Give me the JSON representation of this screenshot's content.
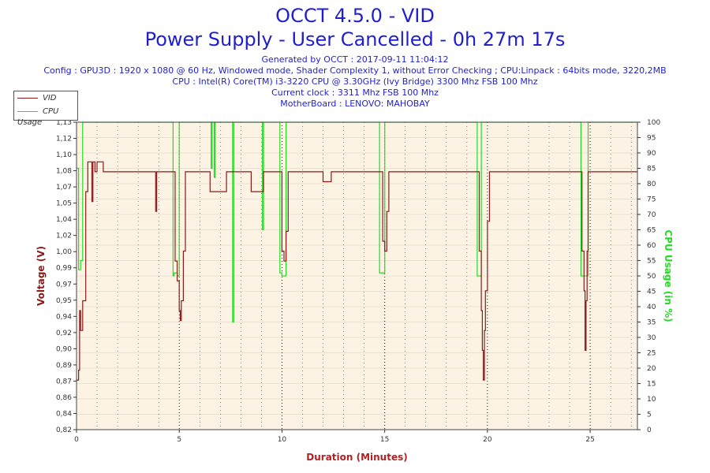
{
  "header": {
    "title": "OCCT 4.5.0 - VID",
    "subtitle": "Power Supply - User Cancelled - 0h 27m 17s",
    "lines": [
      "Generated by OCCT : 2017-09-11 11:04:12",
      "Config : GPU3D : 1920 x 1080 @ 60 Hz, Windowed mode, Shader Complexity 1, without Error Checking ; CPU:Linpack : 64bits mode, 3220,2MB",
      "CPU : Intel(R) Core(TM) i3-3220 CPU @ 3.30GHz (Ivy Bridge) 3300 Mhz FSB 100 Mhz",
      "Current clock : 3311 Mhz FSB 100 Mhz",
      "MotherBoard : LENOVO: MAHOBAY"
    ]
  },
  "legend": [
    {
      "label": "VID",
      "color": "#8b1a1a"
    },
    {
      "label": "CPU Usage",
      "color": "#22dd22"
    }
  ],
  "colors": {
    "vid": "#8b1a1a",
    "cpu": "#22dd22",
    "plot_bg": "#fcf3e4",
    "title": "#1f1fd0",
    "xlabel": "#b22222"
  },
  "chart_data": {
    "type": "line",
    "xlabel": "Duration (Minutes)",
    "ylabel_left": "Voltage (V)",
    "ylabel_right": "CPU Usage (in %)",
    "xlim": [
      0,
      27.3
    ],
    "ylim_left": [
      0.82,
      1.13
    ],
    "ylim_right": [
      0,
      100
    ],
    "x_ticks": [
      "0",
      "5",
      "10",
      "15",
      "20",
      "25"
    ],
    "y_left_ticks": [
      "0,82",
      "0,84",
      "0,86",
      "0,87",
      "0,89",
      "0,90",
      "0,92",
      "0,94",
      "0,95",
      "0,97",
      "0,99",
      "1,00",
      "1,02",
      "1,04",
      "1,05",
      "1,07",
      "1,08",
      "1,10",
      "1,12",
      "1,13"
    ],
    "y_right_ticks": [
      "0",
      "5",
      "10",
      "15",
      "20",
      "25",
      "30",
      "35",
      "40",
      "45",
      "50",
      "55",
      "60",
      "65",
      "70",
      "75",
      "80",
      "85",
      "90",
      "95",
      "100"
    ],
    "grid": true,
    "legend_position": "top-left",
    "series": [
      {
        "name": "VID",
        "x": [
          0.0,
          0.1,
          0.15,
          0.2,
          0.3,
          0.45,
          0.55,
          0.6,
          0.7,
          0.75,
          0.8,
          0.9,
          1.0,
          1.3,
          1.5,
          1.6,
          1.7,
          2.0,
          3.0,
          3.8,
          3.85,
          3.9,
          4.0,
          4.7,
          4.8,
          4.9,
          5.0,
          5.05,
          5.1,
          5.2,
          5.3,
          5.4,
          6.0,
          6.4,
          6.5,
          6.6,
          7.2,
          7.3,
          7.5,
          8.0,
          8.5,
          8.6,
          9.0,
          9.1,
          9.5,
          9.9,
          10.0,
          10.1,
          10.2,
          10.3,
          10.5,
          11.0,
          11.5,
          11.9,
          12.0,
          12.3,
          12.4,
          13.0,
          13.5,
          14.0,
          14.5,
          14.8,
          14.9,
          15.0,
          15.1,
          15.2,
          15.4,
          16.0,
          16.5,
          17.0,
          17.5,
          18.0,
          18.5,
          19.0,
          19.5,
          19.6,
          19.7,
          19.75,
          19.8,
          19.85,
          19.9,
          20.0,
          20.1,
          20.3,
          20.5,
          21.0,
          21.5,
          22.0,
          22.5,
          23.0,
          23.5,
          24.0,
          24.5,
          24.6,
          24.7,
          24.75,
          24.8,
          24.85,
          24.9,
          25.0,
          25.2,
          25.5,
          26.0,
          26.5,
          27.0,
          27.3
        ],
        "y": [
          0.87,
          0.88,
          0.94,
          0.92,
          0.95,
          1.06,
          1.09,
          1.09,
          1.09,
          1.05,
          1.09,
          1.08,
          1.09,
          1.08,
          1.08,
          1.08,
          1.08,
          1.08,
          1.08,
          1.08,
          1.04,
          1.08,
          1.08,
          1.08,
          0.99,
          0.97,
          0.94,
          0.93,
          0.95,
          1.0,
          1.08,
          1.08,
          1.08,
          1.08,
          1.06,
          1.06,
          1.06,
          1.08,
          1.08,
          1.08,
          1.06,
          1.06,
          1.06,
          1.08,
          1.08,
          1.08,
          1.0,
          0.99,
          1.02,
          1.08,
          1.08,
          1.08,
          1.08,
          1.08,
          1.07,
          1.07,
          1.08,
          1.08,
          1.08,
          1.08,
          1.08,
          1.08,
          1.01,
          1.0,
          1.04,
          1.08,
          1.08,
          1.08,
          1.08,
          1.08,
          1.08,
          1.08,
          1.08,
          1.08,
          1.08,
          1.0,
          0.94,
          0.9,
          0.87,
          0.92,
          0.96,
          1.03,
          1.08,
          1.08,
          1.08,
          1.08,
          1.08,
          1.08,
          1.08,
          1.08,
          1.08,
          1.08,
          1.08,
          1.0,
          0.96,
          0.9,
          0.95,
          1.0,
          1.08,
          1.08,
          1.08,
          1.08,
          1.08,
          1.08,
          1.08,
          1.08
        ]
      },
      {
        "name": "CPU Usage",
        "x": [
          0.0,
          0.1,
          0.2,
          0.3,
          0.4,
          0.5,
          1.0,
          2.0,
          3.0,
          4.0,
          4.6,
          4.7,
          4.75,
          4.9,
          5.0,
          5.1,
          5.2,
          5.3,
          6.0,
          6.5,
          6.55,
          6.6,
          6.7,
          6.75,
          6.8,
          7.0,
          7.5,
          7.6,
          7.65,
          7.7,
          8.0,
          9.0,
          9.05,
          9.1,
          9.5,
          9.8,
          9.9,
          10.0,
          10.1,
          10.2,
          10.3,
          11.0,
          12.0,
          13.0,
          14.0,
          14.7,
          14.75,
          14.8,
          15.0,
          15.1,
          15.2,
          16.0,
          17.0,
          18.0,
          19.0,
          19.4,
          19.5,
          19.55,
          19.7,
          19.8,
          19.9,
          20.0,
          20.5,
          21.0,
          22.0,
          23.0,
          24.0,
          24.5,
          24.55,
          24.6,
          24.8,
          24.9,
          25.0,
          25.5,
          26.0,
          27.0,
          27.3
        ],
        "y": [
          85,
          52,
          55,
          100,
          100,
          100,
          100,
          100,
          100,
          100,
          100,
          50,
          51,
          50,
          100,
          100,
          100,
          100,
          100,
          100,
          85,
          100,
          82,
          100,
          100,
          100,
          100,
          35,
          100,
          100,
          100,
          100,
          65,
          100,
          100,
          100,
          51,
          50,
          50,
          100,
          100,
          100,
          100,
          100,
          100,
          100,
          51,
          51,
          100,
          100,
          100,
          100,
          100,
          100,
          100,
          100,
          50,
          50,
          100,
          100,
          100,
          100,
          100,
          100,
          100,
          100,
          100,
          100,
          50,
          50,
          50,
          100,
          100,
          100,
          100,
          100,
          100
        ]
      }
    ]
  }
}
